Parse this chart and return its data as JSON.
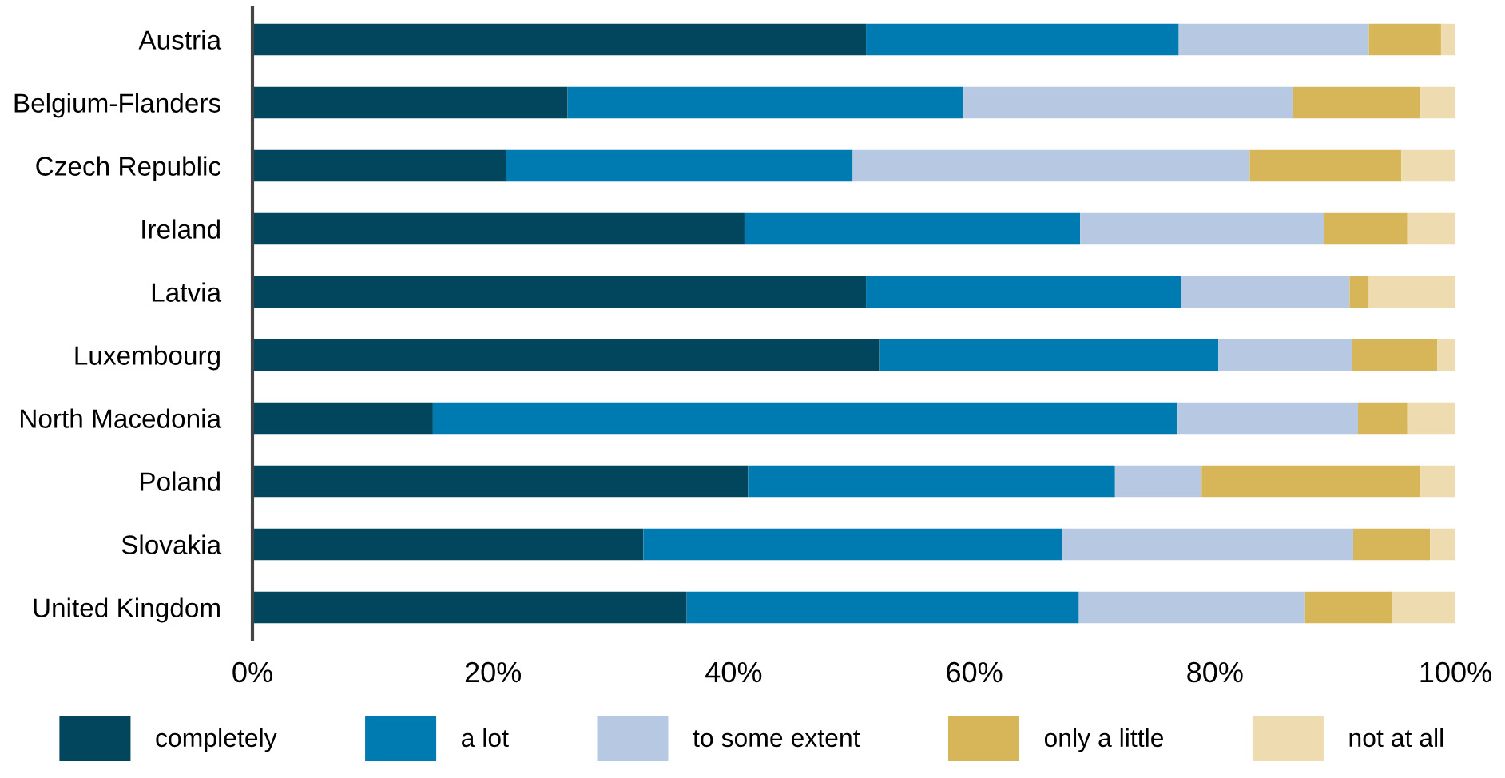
{
  "chart_data": {
    "type": "bar",
    "orientation": "horizontal",
    "stacked": true,
    "categories": [
      "Austria",
      "Belgium-Flanders",
      "Czech Republic",
      "Ireland",
      "Latvia",
      "Luxembourg",
      "North Macedonia",
      "Poland",
      "Slovakia",
      "United Kingdom"
    ],
    "series": [
      {
        "name": "completely",
        "color": "#02465e",
        "values": [
          51.0,
          26.2,
          21.1,
          40.9,
          51.0,
          52.1,
          15.0,
          41.2,
          32.5,
          36.1
        ]
      },
      {
        "name": "a lot",
        "color": "#007bb2",
        "values": [
          26.0,
          32.9,
          28.8,
          27.9,
          26.2,
          28.2,
          61.9,
          30.5,
          34.8,
          32.6
        ]
      },
      {
        "name": "to some extent",
        "color": "#b7c9e2",
        "values": [
          15.8,
          27.4,
          33.0,
          20.3,
          14.0,
          11.1,
          15.0,
          7.2,
          24.2,
          18.8
        ]
      },
      {
        "name": "only a little",
        "color": "#d6b658",
        "values": [
          6.0,
          10.6,
          12.6,
          6.9,
          1.6,
          7.1,
          4.1,
          18.2,
          6.4,
          7.2
        ]
      },
      {
        "name": "not at all",
        "color": "#eedcb0",
        "values": [
          1.2,
          2.9,
          4.5,
          4.0,
          7.2,
          1.5,
          4.0,
          2.9,
          2.1,
          5.3
        ]
      }
    ],
    "xlim": [
      0,
      100
    ],
    "xticks": [
      {
        "value": 0,
        "label": "0%"
      },
      {
        "value": 20,
        "label": "20%"
      },
      {
        "value": 40,
        "label": "40%"
      },
      {
        "value": 60,
        "label": "60%"
      },
      {
        "value": 80,
        "label": "80%"
      },
      {
        "value": 100,
        "label": "100%"
      }
    ],
    "grid": false,
    "legend": "bottom"
  }
}
